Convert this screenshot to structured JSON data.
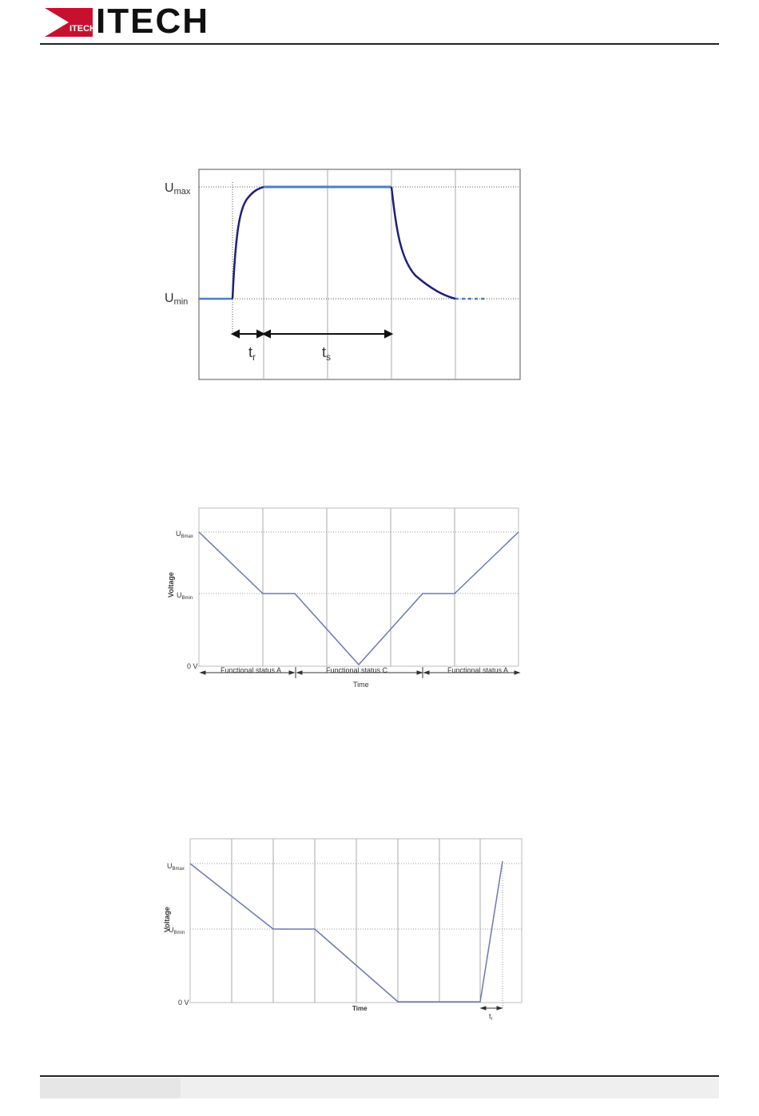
{
  "header": {
    "brand": "ITECH",
    "mark_text": "ITECH",
    "logo_color": "#c8102e"
  },
  "figure1": {
    "u_max_main": "U",
    "u_max_sub": "max",
    "u_min_main": "U",
    "u_min_sub": "min",
    "t_r_main": "t",
    "t_r_sub": "r",
    "t_s_main": "t",
    "t_s_sub": "s",
    "curve_color": "#1f1f7a",
    "flat_color": "#4a7fc1"
  },
  "figure2": {
    "u_bmax_main": "U",
    "u_bmax_sub": "Bmax",
    "u_bmin_main": "U",
    "u_bmin_sub": "Bmin",
    "zero_label": "0 V",
    "y_label": "Voltage",
    "x_label": "Time",
    "status_a_left": "Functional status A",
    "status_c": "Functional status C",
    "status_a_right": "Functional status A",
    "line_color": "#6a78b8"
  },
  "figure3": {
    "u_bmax_main": "U",
    "u_bmax_sub": "Bmax",
    "u_bmin_main": "U",
    "u_bmin_sub": "Bmin",
    "zero_label": "0 V",
    "y_label": "Voltage",
    "x_label": "Time",
    "t_r_main": "t",
    "t_r_sub": "r",
    "line_color": "#6a78b8"
  }
}
